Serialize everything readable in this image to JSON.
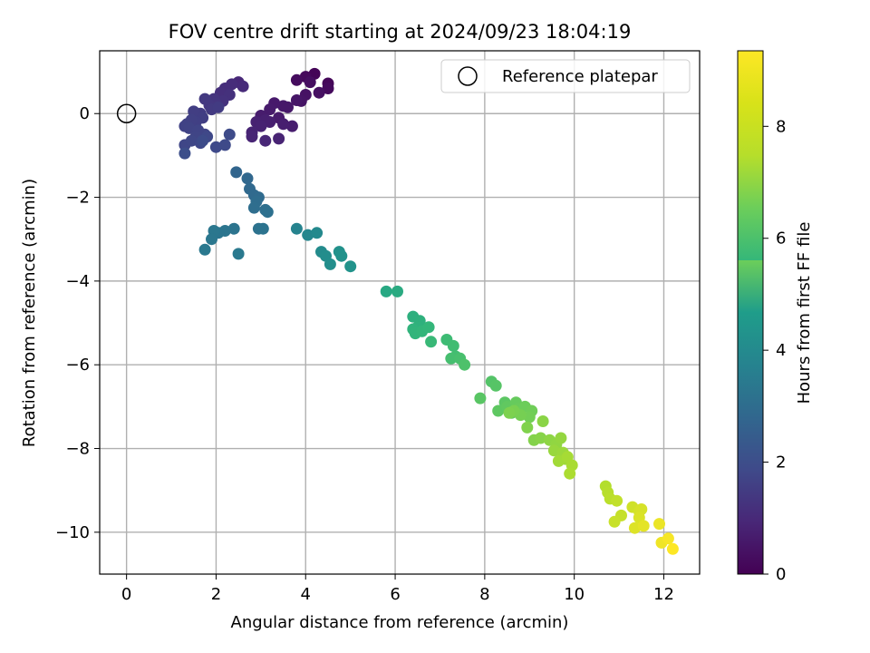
{
  "chart_data": {
    "type": "scatter",
    "title": "FOV centre drift starting at 2024/09/23 18:04:19",
    "xlabel": "Angular distance from reference (arcmin)",
    "ylabel": "Rotation from reference (arcmin)",
    "xlim": [
      -0.6,
      12.8
    ],
    "ylim": [
      -11.0,
      1.5
    ],
    "xticks": [
      0,
      2,
      4,
      6,
      8,
      10,
      12
    ],
    "xtick_labels": [
      "0",
      "2",
      "4",
      "6",
      "8",
      "10",
      "12"
    ],
    "yticks": [
      0,
      -2,
      -4,
      -6,
      -8,
      -10
    ],
    "ytick_labels": [
      "0",
      "−2",
      "−4",
      "−6",
      "−8",
      "−10"
    ],
    "grid": true,
    "legend": {
      "location": "upper right",
      "entries": [
        {
          "label": "Reference platepar",
          "marker": "open-circle",
          "x": 0,
          "y": 0
        }
      ]
    },
    "colorbar": {
      "label": "Hours from first FF file",
      "colormap": "viridis",
      "range": [
        0,
        9.35
      ],
      "ticks": [
        0,
        2,
        4,
        6,
        8
      ],
      "tick_labels": [
        "0",
        "2",
        "4",
        "6",
        "8"
      ]
    },
    "series": [
      {
        "x": [
          4.2,
          4.5,
          4.0,
          4.5,
          3.8,
          4.1,
          4.3,
          4.0,
          3.9,
          3.8,
          3.6,
          3.5,
          3.3,
          3.4,
          3.2,
          3.0,
          3.7,
          3.5,
          3.2,
          3.1,
          2.9,
          3.0,
          2.8,
          3.4,
          2.8,
          3.1
        ],
        "y": [
          0.95,
          0.72,
          0.88,
          0.6,
          0.8,
          0.75,
          0.5,
          0.45,
          0.3,
          0.32,
          0.15,
          0.18,
          0.25,
          -0.1,
          0.1,
          -0.05,
          -0.3,
          -0.25,
          -0.2,
          -0.15,
          -0.2,
          -0.3,
          -0.45,
          -0.6,
          -0.55,
          -0.65
        ],
        "c": [
          0.1,
          0.15,
          0.2,
          0.25,
          0.3,
          0.35,
          0.4,
          0.45,
          0.5,
          0.55,
          0.6,
          0.62,
          0.65,
          0.68,
          0.7,
          0.72,
          0.75,
          0.78,
          0.8,
          0.82,
          0.85,
          0.88,
          0.9,
          0.92,
          0.95,
          1.0
        ]
      },
      {
        "x": [
          2.5,
          2.6,
          2.35,
          2.2,
          2.1,
          2.3,
          2.15,
          1.95,
          2.0,
          1.85,
          1.75,
          1.9,
          2.05,
          1.65,
          1.5,
          1.7,
          1.55,
          1.45,
          1.35,
          1.3,
          1.4,
          1.6,
          1.75,
          1.55,
          1.3,
          1.45,
          1.65,
          1.8,
          2.0,
          2.2,
          2.3,
          1.7
        ],
        "y": [
          0.75,
          0.65,
          0.7,
          0.6,
          0.5,
          0.45,
          0.3,
          0.35,
          0.25,
          0.2,
          0.35,
          0.1,
          0.15,
          0.0,
          0.05,
          -0.1,
          -0.2,
          -0.15,
          -0.25,
          -0.3,
          -0.35,
          -0.4,
          -0.5,
          -0.55,
          -0.75,
          -0.65,
          -0.7,
          -0.55,
          -0.8,
          -0.75,
          -0.5,
          -0.65
        ],
        "c": [
          1.05,
          1.1,
          1.15,
          1.2,
          1.25,
          1.3,
          1.35,
          1.4,
          1.45,
          1.5,
          1.55,
          1.6,
          1.62,
          1.65,
          1.7,
          1.72,
          1.75,
          1.78,
          1.8,
          1.82,
          1.85,
          1.88,
          1.9,
          1.92,
          1.95,
          1.98,
          2.0,
          2.02,
          2.05,
          2.08,
          2.1,
          2.12
        ]
      },
      {
        "x": [
          1.3,
          2.45,
          2.7,
          2.75,
          2.85,
          2.95,
          2.9,
          2.85,
          3.1,
          3.15,
          2.95,
          3.05,
          2.4,
          2.2,
          2.05,
          1.95,
          1.9,
          1.75,
          2.5
        ],
        "y": [
          -0.95,
          -1.4,
          -1.55,
          -1.8,
          -1.95,
          -2.0,
          -2.1,
          -2.25,
          -2.3,
          -2.35,
          -2.75,
          -2.75,
          -2.75,
          -2.8,
          -2.85,
          -2.8,
          -3.0,
          -3.25,
          -3.35
        ],
        "c": [
          2.2,
          3.0,
          3.1,
          3.15,
          3.2,
          3.25,
          3.3,
          3.35,
          3.4,
          3.45,
          3.5,
          3.55,
          3.6,
          3.62,
          3.65,
          3.7,
          3.72,
          3.75,
          3.8
        ]
      },
      {
        "x": [
          3.8,
          4.05,
          4.25,
          4.35,
          4.45,
          4.55,
          4.75,
          4.8,
          5.0
        ],
        "y": [
          -2.75,
          -2.9,
          -2.85,
          -3.3,
          -3.4,
          -3.6,
          -3.3,
          -3.4,
          -3.65
        ],
        "c": [
          4.2,
          4.3,
          4.4,
          4.5,
          4.55,
          4.6,
          4.7,
          4.75,
          4.8
        ]
      },
      {
        "x": [
          5.8,
          6.05,
          6.4,
          6.55,
          6.5,
          6.4,
          6.45,
          6.6,
          6.75,
          6.8,
          7.15,
          7.3,
          7.35,
          7.25,
          7.45,
          7.55
        ],
        "y": [
          -4.25,
          -4.25,
          -4.85,
          -4.95,
          -5.1,
          -5.15,
          -5.25,
          -5.2,
          -5.1,
          -5.45,
          -5.4,
          -5.55,
          -5.8,
          -5.85,
          -5.85,
          -6.0
        ],
        "c": [
          5.6,
          5.7,
          5.9,
          5.95,
          6.0,
          6.05,
          6.1,
          6.15,
          6.2,
          6.3,
          6.4,
          6.45,
          6.5,
          6.55,
          6.6,
          6.7
        ]
      },
      {
        "x": [
          8.15,
          8.25,
          7.9,
          8.45,
          8.3,
          8.5,
          8.6,
          8.7,
          8.75,
          8.9,
          9.05,
          9.0,
          8.8,
          8.65,
          8.55,
          8.95,
          9.1,
          9.25,
          9.3,
          9.45,
          9.6,
          9.7,
          9.55,
          9.75,
          9.8,
          9.65,
          9.85,
          9.95,
          9.9
        ],
        "y": [
          -6.4,
          -6.5,
          -6.8,
          -6.9,
          -7.1,
          -7.0,
          -7.15,
          -6.9,
          -7.05,
          -7.0,
          -7.1,
          -7.25,
          -7.2,
          -7.1,
          -7.15,
          -7.5,
          -7.8,
          -7.75,
          -7.35,
          -7.8,
          -7.9,
          -7.75,
          -8.05,
          -8.1,
          -8.25,
          -8.3,
          -8.2,
          -8.4,
          -8.6
        ],
        "c": [
          6.8,
          6.85,
          6.9,
          6.95,
          7.0,
          7.05,
          7.1,
          7.15,
          7.2,
          7.25,
          7.3,
          7.35,
          7.4,
          7.45,
          7.5,
          7.55,
          7.6,
          7.65,
          7.7,
          7.75,
          7.8,
          7.85,
          7.9,
          7.95,
          8.0,
          8.05,
          8.1,
          8.15,
          8.2
        ]
      },
      {
        "x": [
          10.7,
          10.75,
          10.8,
          10.95,
          11.05,
          10.9,
          11.3,
          11.45,
          11.5,
          11.45,
          11.35,
          11.55,
          11.9,
          11.95,
          12.1,
          12.2
        ],
        "y": [
          -8.9,
          -9.05,
          -9.2,
          -9.25,
          -9.6,
          -9.75,
          -9.4,
          -9.5,
          -9.45,
          -9.65,
          -9.9,
          -9.85,
          -9.8,
          -10.25,
          -10.15,
          -10.4
        ],
        "c": [
          8.3,
          8.35,
          8.4,
          8.5,
          8.55,
          8.6,
          8.7,
          8.75,
          8.8,
          8.85,
          8.9,
          9.0,
          9.1,
          9.15,
          9.25,
          9.35
        ]
      }
    ]
  }
}
